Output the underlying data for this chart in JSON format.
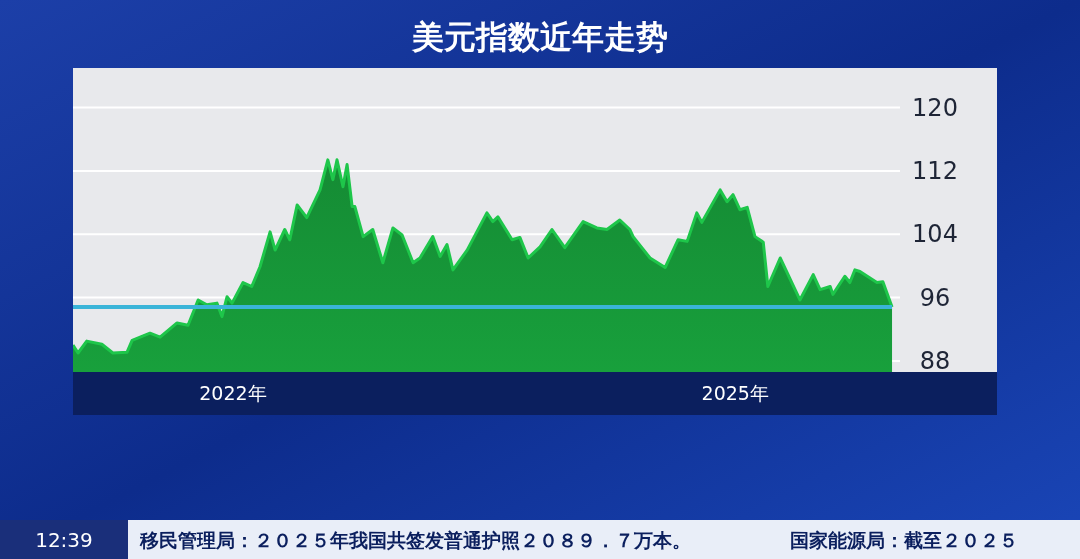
{
  "chart_data": {
    "type": "area",
    "title": "美元指数近年走势",
    "x": [
      "2021-01-17",
      "2021-01-28",
      "2021-02-16",
      "2021-03-21",
      "2021-04-14",
      "2021-05-15",
      "2021-05-26",
      "2021-07-04",
      "2021-07-26",
      "2021-09-01",
      "2021-09-25",
      "2021-10-17",
      "2021-11-05",
      "2021-11-27",
      "2021-12-08",
      "2021-12-19",
      "2021-12-30",
      "2022-01-23",
      "2022-02-11",
      "2022-03-01",
      "2022-03-23",
      "2022-04-03",
      "2022-04-24",
      "2022-05-05",
      "2022-05-21",
      "2022-06-11",
      "2022-07-10",
      "2022-07-27",
      "2022-08-07",
      "2022-08-16",
      "2022-08-29",
      "2022-09-07",
      "2022-09-18",
      "2022-09-24",
      "2022-10-12",
      "2022-11-02",
      "2022-11-24",
      "2022-12-16",
      "2023-01-05",
      "2023-01-29",
      "2023-02-13",
      "2023-03-13",
      "2023-03-29",
      "2023-04-13",
      "2023-04-26",
      "2023-05-27",
      "2023-07-09",
      "2023-07-22",
      "2023-08-02",
      "2023-09-02",
      "2023-09-19",
      "2023-10-07",
      "2023-11-02",
      "2023-11-28",
      "2023-12-26",
      "2024-02-04",
      "2024-03-05",
      "2024-03-27",
      "2024-04-24",
      "2024-05-16",
      "2024-05-23",
      "2024-06-29",
      "2024-08-01",
      "2024-08-29",
      "2024-09-18",
      "2024-10-09",
      "2024-10-20",
      "2024-11-29",
      "2024-12-14",
      "2024-12-27",
      "2025-01-11",
      "2025-01-27",
      "2025-02-13",
      "2025-03-03",
      "2025-03-13",
      "2025-04-09",
      "2025-05-22",
      "2025-06-20",
      "2025-07-05",
      "2025-07-27",
      "2025-08-02",
      "2025-08-28",
      "2025-09-08",
      "2025-09-19",
      "2025-09-30",
      "2025-11-06",
      "2025-11-19",
      "2025-12-09"
    ],
    "series": [
      {
        "color": "#18a03c",
        "values": [
          90.0,
          89.0,
          90.5,
          90.1,
          89.0,
          89.1,
          90.6,
          91.5,
          91.0,
          92.8,
          92.5,
          95.7,
          95.1,
          95.3,
          93.6,
          96.1,
          95.3,
          97.9,
          97.4,
          99.9,
          104.3,
          102.0,
          104.6,
          103.3,
          107.7,
          106.1,
          109.6,
          113.4,
          110.9,
          113.4,
          110.0,
          112.8,
          107.5,
          107.5,
          103.7,
          104.6,
          100.4,
          104.8,
          103.9,
          100.4,
          101.0,
          103.7,
          101.2,
          102.7,
          99.5,
          102.0,
          106.7,
          105.6,
          106.2,
          103.3,
          103.6,
          101.0,
          102.4,
          104.6,
          102.3,
          105.6,
          104.8,
          104.6,
          105.8,
          104.6,
          103.7,
          101.0,
          99.8,
          103.3,
          103.1,
          106.7,
          105.5,
          109.6,
          108.1,
          109.0,
          107.1,
          107.4,
          103.7,
          103.0,
          97.4,
          101.0,
          95.7,
          98.9,
          97.0,
          97.4,
          96.4,
          98.7,
          97.9,
          99.5,
          99.3,
          97.9,
          98.0,
          94.8
        ]
      }
    ],
    "xlim": [
      "2021-01-17",
      "2026-07-26"
    ],
    "xticks": [
      {
        "value": "2022-01-01",
        "label": "2022年"
      },
      {
        "value": "2025-01-01",
        "label": "2025年"
      }
    ],
    "ylim": [
      86.6,
      125
    ],
    "yticks": [
      88,
      96,
      104,
      112,
      120
    ],
    "grid": "y",
    "ref_lines": [
      {
        "axis": "y",
        "value": 94.8,
        "color": "#3ab4d8"
      }
    ],
    "annotations": [
      "12:39",
      "移民管理局：２０２５年我国共签发普通护照２０８９．７万本。",
      "国家能源局：截至２０２５"
    ]
  }
}
